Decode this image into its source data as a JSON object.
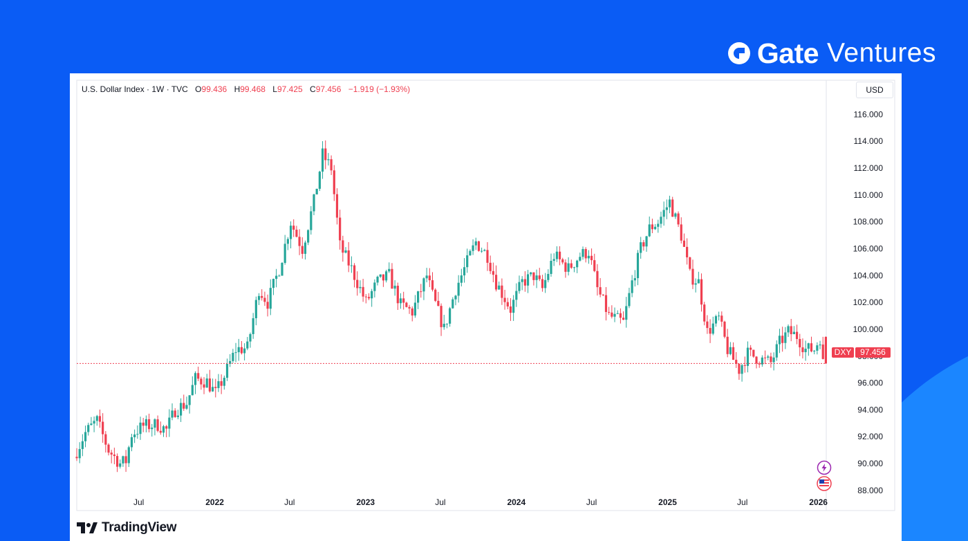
{
  "brand": {
    "name_bold": "Gate",
    "name_light": "Ventures",
    "logo_icon": "gate-logo-icon"
  },
  "colors": {
    "background": "#0a5cf5",
    "up": "#26a69a",
    "down": "#ef3f50",
    "price_line": "#ef3f50",
    "text": "#131722"
  },
  "legend": {
    "symbol": "U.S. Dollar Index · 1W · TVC",
    "open_label": "O",
    "open": "99.436",
    "high_label": "H",
    "high": "99.468",
    "low_label": "L",
    "low": "97.425",
    "close_label": "C",
    "close": "97.456",
    "change": "−1.919 (−1.93%)"
  },
  "currency_button": "USD",
  "price_tag": {
    "symbol": "DXY",
    "value": "97.456"
  },
  "footer": {
    "logo_text": "TradingView"
  },
  "chart_data": {
    "type": "candlestick",
    "interval": "1W",
    "ylim": [
      86.5,
      117
    ],
    "y_ticks": [
      "116.000",
      "114.000",
      "112.000",
      "110.000",
      "108.000",
      "106.000",
      "104.000",
      "102.000",
      "100.000",
      "98.000",
      "96.000",
      "94.000",
      "92.000",
      "90.000",
      "88.000"
    ],
    "x_ticks": [
      {
        "label": "Jul",
        "date": "2021-07-01"
      },
      {
        "label": "2022",
        "date": "2022-01-01"
      },
      {
        "label": "Jul",
        "date": "2022-07-01"
      },
      {
        "label": "2023",
        "date": "2023-01-01"
      },
      {
        "label": "Jul",
        "date": "2023-07-01"
      },
      {
        "label": "2024",
        "date": "2024-01-01"
      },
      {
        "label": "Jul",
        "date": "2024-07-01"
      },
      {
        "label": "2025",
        "date": "2025-01-01"
      },
      {
        "label": "Jul",
        "date": "2025-07-01"
      },
      {
        "label": "2026",
        "date": "2026-01-01"
      }
    ],
    "x_range": [
      "2021-02-01",
      "2026-01-20"
    ],
    "last_close": 97.456,
    "series": [
      {
        "date": "2021-02-01",
        "close": 90.5
      },
      {
        "date": "2021-03-01",
        "close": 92.3
      },
      {
        "date": "2021-03-29",
        "close": 93.2
      },
      {
        "date": "2021-04-26",
        "close": 91.0
      },
      {
        "date": "2021-05-24",
        "close": 90.0
      },
      {
        "date": "2021-06-07",
        "close": 90.2
      },
      {
        "date": "2021-06-21",
        "close": 92.2
      },
      {
        "date": "2021-07-19",
        "close": 92.8
      },
      {
        "date": "2021-08-23",
        "close": 92.9
      },
      {
        "date": "2021-09-13",
        "close": 92.5
      },
      {
        "date": "2021-10-04",
        "close": 94.0
      },
      {
        "date": "2021-11-01",
        "close": 94.5
      },
      {
        "date": "2021-11-22",
        "close": 96.3
      },
      {
        "date": "2021-12-20",
        "close": 96.1
      },
      {
        "date": "2022-01-10",
        "close": 95.2
      },
      {
        "date": "2022-01-31",
        "close": 96.5
      },
      {
        "date": "2022-02-28",
        "close": 98.5
      },
      {
        "date": "2022-03-28",
        "close": 98.6
      },
      {
        "date": "2022-04-25",
        "close": 103.0
      },
      {
        "date": "2022-05-16",
        "close": 102.0
      },
      {
        "date": "2022-06-13",
        "close": 104.5
      },
      {
        "date": "2022-07-11",
        "close": 108.0
      },
      {
        "date": "2022-08-08",
        "close": 106.0
      },
      {
        "date": "2022-09-05",
        "close": 109.5
      },
      {
        "date": "2022-09-26",
        "close": 113.0
      },
      {
        "date": "2022-10-17",
        "close": 112.0
      },
      {
        "date": "2022-11-07",
        "close": 106.2
      },
      {
        "date": "2022-12-05",
        "close": 104.5
      },
      {
        "date": "2023-01-09",
        "close": 102.0
      },
      {
        "date": "2023-02-06",
        "close": 103.5
      },
      {
        "date": "2023-03-06",
        "close": 104.0
      },
      {
        "date": "2023-04-03",
        "close": 101.8
      },
      {
        "date": "2023-05-01",
        "close": 101.3
      },
      {
        "date": "2023-06-05",
        "close": 104.0
      },
      {
        "date": "2023-06-19",
        "close": 102.5
      },
      {
        "date": "2023-07-17",
        "close": 100.0
      },
      {
        "date": "2023-08-14",
        "close": 103.0
      },
      {
        "date": "2023-09-11",
        "close": 105.0
      },
      {
        "date": "2023-10-02",
        "close": 106.5
      },
      {
        "date": "2023-10-30",
        "close": 105.5
      },
      {
        "date": "2023-11-20",
        "close": 103.5
      },
      {
        "date": "2023-12-25",
        "close": 101.5
      },
      {
        "date": "2024-01-22",
        "close": 103.5
      },
      {
        "date": "2024-02-19",
        "close": 104.0
      },
      {
        "date": "2024-03-11",
        "close": 103.0
      },
      {
        "date": "2024-04-08",
        "close": 105.5
      },
      {
        "date": "2024-05-13",
        "close": 104.5
      },
      {
        "date": "2024-06-10",
        "close": 105.5
      },
      {
        "date": "2024-07-01",
        "close": 105.8
      },
      {
        "date": "2024-07-22",
        "close": 103.0
      },
      {
        "date": "2024-08-19",
        "close": 101.0
      },
      {
        "date": "2024-09-23",
        "close": 100.5
      },
      {
        "date": "2024-10-14",
        "close": 103.5
      },
      {
        "date": "2024-11-04",
        "close": 106.0
      },
      {
        "date": "2024-11-25",
        "close": 107.5
      },
      {
        "date": "2024-12-16",
        "close": 108.0
      },
      {
        "date": "2025-01-13",
        "close": 109.5
      },
      {
        "date": "2025-02-10",
        "close": 107.0
      },
      {
        "date": "2025-03-03",
        "close": 104.0
      },
      {
        "date": "2025-03-24",
        "close": 103.5
      },
      {
        "date": "2025-04-14",
        "close": 99.8
      },
      {
        "date": "2025-05-12",
        "close": 100.8
      },
      {
        "date": "2025-06-02",
        "close": 98.5
      },
      {
        "date": "2025-06-30",
        "close": 97.0
      },
      {
        "date": "2025-07-21",
        "close": 98.2
      },
      {
        "date": "2025-08-18",
        "close": 97.8
      },
      {
        "date": "2025-09-15",
        "close": 97.5
      },
      {
        "date": "2025-10-06",
        "close": 99.0
      },
      {
        "date": "2025-10-27",
        "close": 99.8
      },
      {
        "date": "2025-11-17",
        "close": 99.5
      },
      {
        "date": "2025-12-08",
        "close": 98.5
      },
      {
        "date": "2025-12-29",
        "close": 98.5
      },
      {
        "date": "2026-01-12",
        "close": 99.4
      },
      {
        "date": "2026-01-19",
        "close": 97.456
      }
    ]
  }
}
